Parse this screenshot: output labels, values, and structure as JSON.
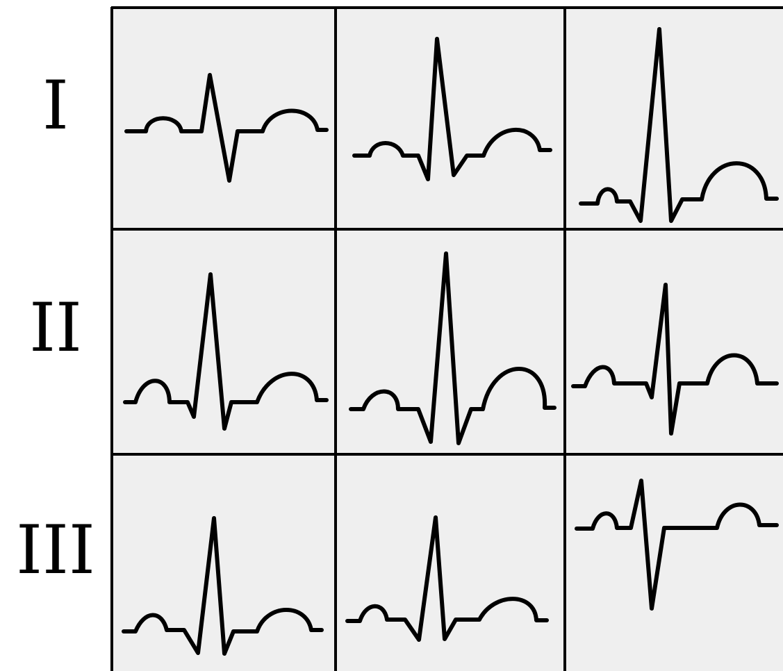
{
  "leads": [
    {
      "label": "I"
    },
    {
      "label": "II"
    },
    {
      "label": "III"
    }
  ],
  "colors": {
    "panel_background": "#efefef",
    "trace": "#000000",
    "grid_line": "#000000"
  },
  "grid": {
    "rows": 3,
    "columns": 3
  }
}
